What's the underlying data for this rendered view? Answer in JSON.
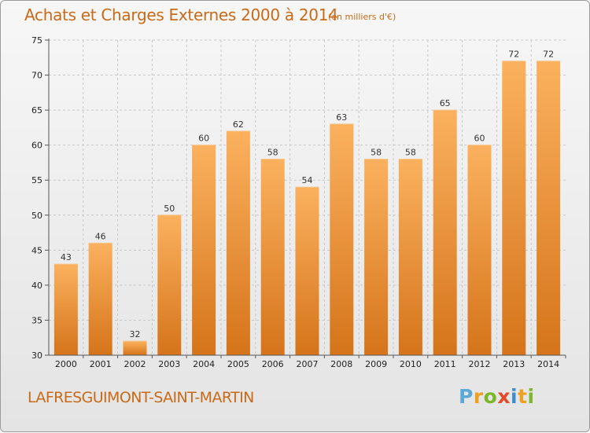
{
  "header": {
    "title": "Achats et Charges Externes 2000 à 2014",
    "subtitle": "(en milliers d'€)"
  },
  "footer": {
    "commune": "LAFRESGUIMONT-SAINT-MARTIN",
    "logo_letters": [
      "P",
      "r",
      "o",
      "x",
      "i",
      "t",
      "i"
    ]
  },
  "colors": {
    "bar_light": "#fbb15e",
    "bar_dark": "#d5741a",
    "accent": "#c86a18"
  },
  "chart_data": {
    "type": "bar",
    "title": "Achats et Charges Externes 2000 à 2014",
    "subtitle": "(en milliers d'€)",
    "xlabel": "",
    "ylabel": "",
    "categories": [
      "2000",
      "2001",
      "2002",
      "2003",
      "2004",
      "2005",
      "2006",
      "2007",
      "2008",
      "2009",
      "2010",
      "2011",
      "2012",
      "2013",
      "2014"
    ],
    "values": [
      43,
      46,
      32,
      50,
      60,
      62,
      58,
      54,
      63,
      58,
      58,
      65,
      60,
      72,
      72
    ],
    "ylim": [
      30,
      75
    ],
    "yticks": [
      30,
      35,
      40,
      45,
      50,
      55,
      60,
      65,
      70,
      75
    ],
    "grid": true
  }
}
